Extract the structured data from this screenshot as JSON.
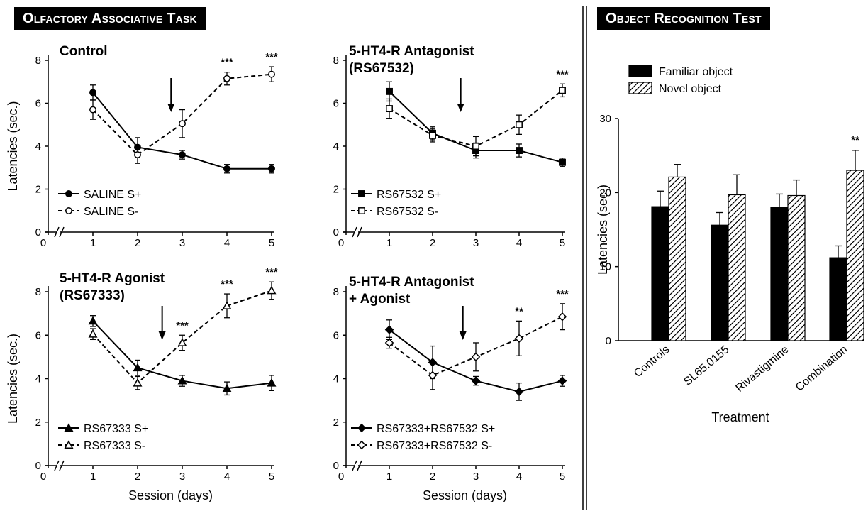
{
  "banners": {
    "left": "Olfactory Associative Task",
    "right": "Object Recognition Test"
  },
  "chart_data": [
    {
      "id": "p1",
      "type": "line",
      "title": "Control",
      "xlabel": "",
      "ylabel": "Latencies (sec.)",
      "x": [
        1,
        2,
        3,
        4,
        5
      ],
      "xlim": [
        0,
        5
      ],
      "ylim": [
        0,
        8
      ],
      "yticks": [
        0,
        2,
        4,
        6,
        8
      ],
      "xticks": [
        0,
        1,
        2,
        3,
        4,
        5
      ],
      "arrow_x": 2.75,
      "series": [
        {
          "name": "SALINE S+",
          "marker": "circle",
          "filled": true,
          "dashed": false,
          "values": [
            6.5,
            3.95,
            3.6,
            2.95,
            2.95
          ],
          "err": [
            0.35,
            0.45,
            0.2,
            0.2,
            0.2
          ]
        },
        {
          "name": "SALINE S-",
          "marker": "circle",
          "filled": false,
          "dashed": true,
          "values": [
            5.7,
            3.6,
            5.05,
            7.15,
            7.35
          ],
          "err": [
            0.45,
            0.4,
            0.65,
            0.3,
            0.35
          ]
        }
      ],
      "annotations": [
        {
          "x": 4,
          "text": "***"
        },
        {
          "x": 5,
          "text": "***"
        }
      ]
    },
    {
      "id": "p2",
      "type": "line",
      "title": "5-HT4-R Antagonist (RS67532)",
      "title_lines": [
        "5-HT4-R Antagonist",
        "(RS67532)"
      ],
      "xlabel": "",
      "ylabel": "",
      "x": [
        1,
        2,
        3,
        4,
        5
      ],
      "xlim": [
        0,
        5
      ],
      "ylim": [
        0,
        8
      ],
      "yticks": [
        0,
        2,
        4,
        6,
        8
      ],
      "xticks": [
        0,
        1,
        2,
        3,
        4,
        5
      ],
      "arrow_x": 2.65,
      "series": [
        {
          "name": "RS67532 S+",
          "marker": "square",
          "filled": true,
          "dashed": false,
          "values": [
            6.55,
            4.6,
            3.8,
            3.8,
            3.25
          ],
          "err": [
            0.45,
            0.3,
            0.35,
            0.3,
            0.2
          ]
        },
        {
          "name": "RS67532 S-",
          "marker": "square",
          "filled": false,
          "dashed": true,
          "values": [
            5.75,
            4.5,
            4.0,
            5.0,
            6.6
          ],
          "err": [
            0.45,
            0.3,
            0.45,
            0.45,
            0.3
          ]
        }
      ],
      "annotations": [
        {
          "x": 5,
          "text": "***"
        }
      ]
    },
    {
      "id": "p3",
      "type": "line",
      "title": "5-HT4-R Agonist (RS67333)",
      "title_lines": [
        "5-HT4-R Agonist",
        "(RS67333)"
      ],
      "xlabel": "Session (days)",
      "ylabel": "Latencies (sec.)",
      "x": [
        1,
        2,
        3,
        4,
        5
      ],
      "xlim": [
        0,
        5
      ],
      "ylim": [
        0,
        8
      ],
      "yticks": [
        0,
        2,
        4,
        6,
        8
      ],
      "xticks": [
        0,
        1,
        2,
        3,
        4,
        5
      ],
      "arrow_x": 2.55,
      "series": [
        {
          "name": "RS67333 S+",
          "marker": "triangle",
          "filled": true,
          "dashed": false,
          "values": [
            6.65,
            4.5,
            3.9,
            3.55,
            3.8
          ],
          "err": [
            0.25,
            0.35,
            0.25,
            0.3,
            0.35
          ]
        },
        {
          "name": "RS67333 S-",
          "marker": "triangle",
          "filled": false,
          "dashed": true,
          "values": [
            6.05,
            3.8,
            5.65,
            7.35,
            8.05
          ],
          "err": [
            0.25,
            0.3,
            0.35,
            0.55,
            0.4
          ]
        }
      ],
      "annotations": [
        {
          "x": 3,
          "text": "***"
        },
        {
          "x": 4,
          "text": "***"
        },
        {
          "x": 5,
          "text": "***"
        }
      ]
    },
    {
      "id": "p4",
      "type": "line",
      "title": "5-HT4-R Antagonist + Agonist",
      "title_lines": [
        "5-HT4-R Antagonist",
        "+ Agonist"
      ],
      "xlabel": "Session (days)",
      "ylabel": "",
      "x": [
        1,
        2,
        3,
        4,
        5
      ],
      "xlim": [
        0,
        5
      ],
      "ylim": [
        0,
        8
      ],
      "yticks": [
        0,
        2,
        4,
        6,
        8
      ],
      "xticks": [
        0,
        1,
        2,
        3,
        4,
        5
      ],
      "arrow_x": 2.7,
      "series": [
        {
          "name": "RS67333+RS67532 S+",
          "marker": "diamond",
          "filled": true,
          "dashed": false,
          "values": [
            6.25,
            4.75,
            3.9,
            3.4,
            3.9
          ],
          "err": [
            0.45,
            0.75,
            0.2,
            0.4,
            0.25
          ]
        },
        {
          "name": "RS67333+RS67532 S-",
          "marker": "diamond",
          "filled": false,
          "dashed": true,
          "values": [
            5.65,
            4.15,
            5.0,
            5.85,
            6.85
          ],
          "err": [
            0.25,
            0.65,
            0.65,
            0.8,
            0.6
          ]
        }
      ],
      "annotations": [
        {
          "x": 4,
          "text": "**"
        },
        {
          "x": 5,
          "text": "***"
        }
      ]
    },
    {
      "id": "p5",
      "type": "bar",
      "title": "",
      "xlabel": "Treatment",
      "ylabel": "Latencies (sec.)",
      "categories": [
        "Controls",
        "SL65.0155",
        "Rivastigmine",
        "Combination"
      ],
      "ylim": [
        0,
        30
      ],
      "yticks": [
        0,
        10,
        20,
        30
      ],
      "series": [
        {
          "name": "Familiar object",
          "fill": "black",
          "values": [
            18.1,
            15.6,
            18.0,
            11.2
          ],
          "err": [
            2.1,
            1.7,
            1.8,
            1.6
          ]
        },
        {
          "name": "Novel object",
          "fill": "hatched",
          "values": [
            22.1,
            19.7,
            19.6,
            23.0
          ],
          "err": [
            1.7,
            2.7,
            2.1,
            2.7
          ]
        }
      ],
      "annotations": [
        {
          "category": "Combination",
          "text": "**"
        }
      ]
    }
  ],
  "colors": {
    "ink": "#000000",
    "background": "#ffffff"
  }
}
